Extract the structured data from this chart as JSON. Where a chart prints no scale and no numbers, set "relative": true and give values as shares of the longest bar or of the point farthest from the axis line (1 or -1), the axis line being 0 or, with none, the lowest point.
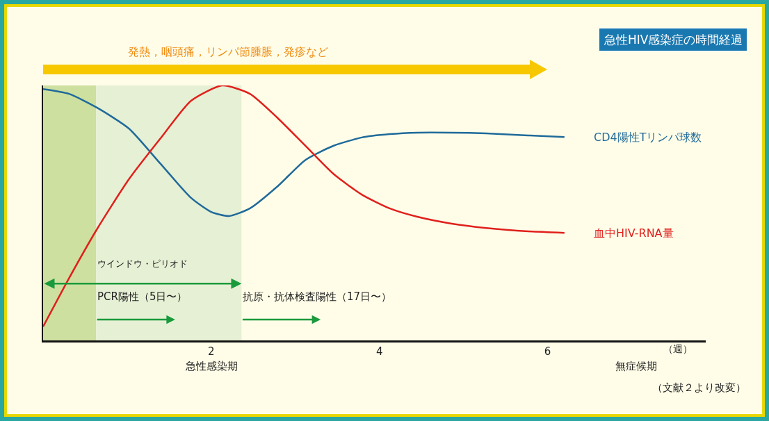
{
  "chart_data": {
    "type": "line",
    "title": "急性HIV感染症の時間経過",
    "relative": true,
    "xlabel": "（週）",
    "xlim": [
      0,
      7.88
    ],
    "xticks": [
      2,
      4,
      6
    ],
    "grid": false,
    "legend": false,
    "series": [
      {
        "name": "CD4陽性Tリンパ球数",
        "color": "#1f6a9a",
        "x": [
          0,
          0.31,
          0.64,
          1.02,
          1.39,
          1.76,
          2.0,
          2.21,
          2.46,
          2.79,
          3.12,
          3.45,
          3.79,
          4.12,
          4.45,
          4.86,
          5.27,
          5.77,
          6.2
        ],
        "values": [
          0.986,
          0.967,
          0.913,
          0.831,
          0.695,
          0.559,
          0.504,
          0.488,
          0.518,
          0.605,
          0.708,
          0.763,
          0.796,
          0.809,
          0.815,
          0.815,
          0.812,
          0.804,
          0.798
        ]
      },
      {
        "name": "血中HIV-RNA量",
        "color": "#e0201c",
        "x": [
          0,
          0.31,
          0.64,
          1.02,
          1.39,
          1.76,
          2.13,
          2.46,
          2.79,
          3.12,
          3.45,
          3.79,
          4.12,
          4.45,
          4.86,
          5.27,
          5.77,
          6.2
        ],
        "values": [
          0.054,
          0.245,
          0.436,
          0.632,
          0.79,
          0.94,
          1.0,
          0.967,
          0.872,
          0.763,
          0.654,
          0.572,
          0.518,
          0.485,
          0.458,
          0.441,
          0.428,
          0.422
        ]
      }
    ],
    "bands": [
      {
        "axis": "x",
        "from": 0,
        "to": 0.63,
        "color": "#cde0a0"
      },
      {
        "axis": "x",
        "from": 0.63,
        "to": 2.36,
        "color": "#e6f0d4"
      }
    ],
    "annotations": [
      "発熱，咽頭痛，リンパ節腫脹，発疹など",
      "ウインドウ・ピリオド",
      "PCR陽性（5日〜）",
      "抗原・抗体検査陽性（17日〜）",
      "急性感染期",
      "無症候期",
      "（文献２より改変）"
    ]
  }
}
